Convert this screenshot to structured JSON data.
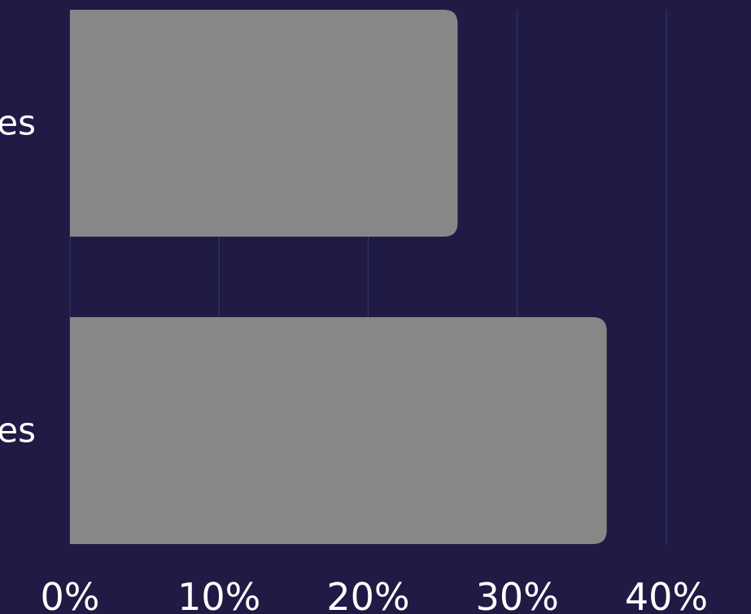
{
  "chart_data": {
    "type": "bar",
    "orientation": "horizontal",
    "categories": [
      "es",
      "es"
    ],
    "values": [
      26,
      36
    ],
    "xlim": [
      0,
      40
    ],
    "x_ticks": [
      "0%",
      "10%",
      "20%",
      "30%",
      "40%"
    ],
    "grid": true,
    "title": "",
    "xlabel": "",
    "ylabel": ""
  },
  "colors": {
    "background": "#1f1b45",
    "bar": "#878787",
    "grid": "#3a3668",
    "text": "#ffffff"
  }
}
